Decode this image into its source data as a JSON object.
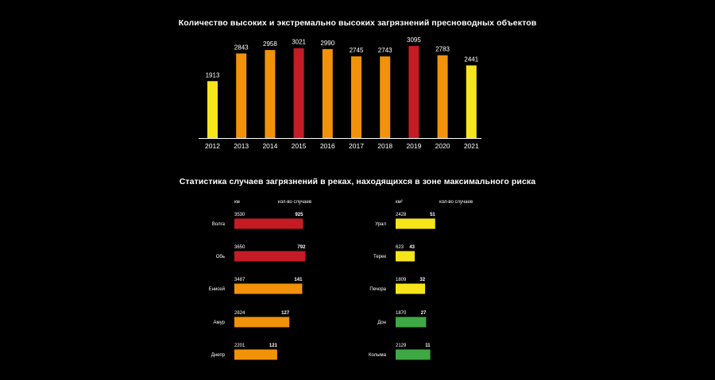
{
  "chart_data": [
    {
      "type": "bar",
      "title": "Количество высоких и экстремально высоких загрязнений пресноводных объектов",
      "categories": [
        "2012",
        "2013",
        "2014",
        "2015",
        "2016",
        "2017",
        "2018",
        "2019",
        "2020",
        "2021"
      ],
      "values": [
        1913,
        2843,
        2958,
        3021,
        2990,
        2745,
        2743,
        3095,
        2783,
        2441
      ],
      "colors": [
        "#f6e51b",
        "#f2920a",
        "#f2920a",
        "#c41b24",
        "#f2920a",
        "#f2920a",
        "#f2920a",
        "#c41b24",
        "#f2920a",
        "#f6e51b"
      ],
      "ylim": [
        0,
        3400
      ],
      "grid": false,
      "legend": "none"
    },
    {
      "type": "bar",
      "orientation": "horizontal",
      "title": "Статистика случаев загрязнений в реках, находящихся в зоне максимального риска",
      "column_labels": {
        "left_length": "км",
        "left_count": "кол-во случаев",
        "right_length": "км²",
        "right_count": "кол-во случаев"
      },
      "rivers_left": [
        {
          "name": "Волга",
          "length": "3530",
          "cases": 925,
          "color": "#c41b24"
        },
        {
          "name": "Обь",
          "length": "3650",
          "cases": 792,
          "color": "#c41b24"
        },
        {
          "name": "Енисей",
          "length": "3487",
          "cases": 141,
          "color": "#f2920a"
        },
        {
          "name": "Амур",
          "length": "2824",
          "cases": 127,
          "color": "#f2920a"
        },
        {
          "name": "Днепр",
          "length": "2201",
          "cases": 121,
          "color": "#f2920a"
        }
      ],
      "rivers_right": [
        {
          "name": "Урал",
          "length": "2428",
          "cases": 51,
          "color": "#f6e51b"
        },
        {
          "name": "Терек",
          "length": "623",
          "cases": 43,
          "color": "#f6e51b"
        },
        {
          "name": "Печора",
          "length": "1809",
          "cases": 32,
          "color": "#f6e51b"
        },
        {
          "name": "Дон",
          "length": "1870",
          "cases": 27,
          "color": "#3ea845"
        },
        {
          "name": "Колыма",
          "length": "2129",
          "cases": 11,
          "color": "#3ea845"
        }
      ]
    }
  ]
}
